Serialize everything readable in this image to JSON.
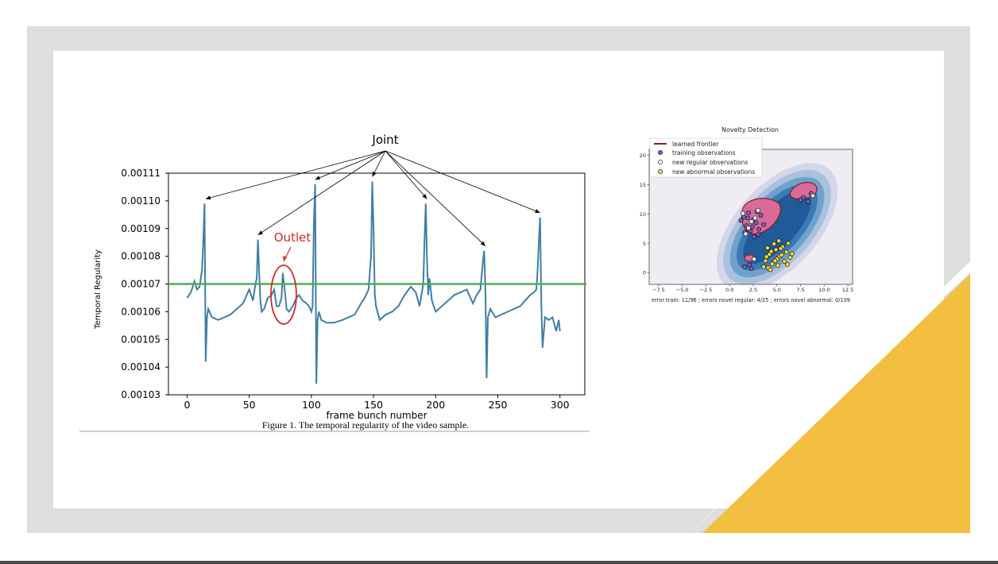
{
  "slide": {
    "colors": {
      "frame": "#dedede",
      "accent_triangle": "#f3bf40",
      "line": "#3f7ea6",
      "threshold": "#4caf50",
      "annotation_red": "#d42a26"
    }
  },
  "chart_data": [
    {
      "type": "line",
      "title": "",
      "xlabel": "frame bunch number",
      "ylabel": "Temporal Regularity",
      "caption": "Figure 1. The temporal regularity of the video sample.",
      "xlim": [
        -15,
        320
      ],
      "ylim": [
        0.00103,
        0.00111
      ],
      "xticks": [
        0,
        50,
        100,
        150,
        200,
        250,
        300
      ],
      "xtick_labels": [
        "0",
        "50",
        "100",
        "150",
        "200",
        "250",
        "300"
      ],
      "yticks": [
        0.00103,
        0.00104,
        0.00105,
        0.00106,
        0.00107,
        0.00108,
        0.00109,
        0.0011,
        0.00111
      ],
      "ytick_labels": [
        "0.00103",
        "0.00104",
        "0.00105",
        "0.00106",
        "0.00107",
        "0.00108",
        "0.00109",
        "0.00110",
        "0.00111"
      ],
      "grid": true,
      "threshold": 0.00107,
      "annotations": [
        {
          "text": "Joint",
          "points_to_x": [
            15,
            57,
            103,
            149,
            193,
            240,
            284
          ]
        },
        {
          "text": "Outlet",
          "points_to_x": [
            77
          ]
        }
      ],
      "series": [
        {
          "x": [
            0,
            3,
            6,
            8,
            10,
            12,
            13,
            14,
            15,
            16,
            17,
            20,
            25,
            30,
            35,
            40,
            45,
            48,
            50,
            53,
            55,
            56,
            57,
            58,
            59,
            60,
            62,
            65,
            68,
            70,
            72,
            74,
            76,
            77,
            78,
            79,
            80,
            82,
            85,
            88,
            90,
            93,
            96,
            98,
            100,
            101,
            102,
            103,
            104,
            105,
            106,
            108,
            112,
            118,
            125,
            130,
            135,
            140,
            143,
            146,
            148,
            149,
            150,
            151,
            152,
            155,
            160,
            165,
            170,
            175,
            180,
            184,
            187,
            190,
            191,
            192,
            193,
            194,
            195,
            197,
            200,
            205,
            210,
            215,
            220,
            225,
            230,
            233,
            236,
            238,
            239,
            240,
            241,
            242,
            244,
            248,
            253,
            258,
            263,
            268,
            272,
            276,
            279,
            281,
            282,
            283,
            284,
            285,
            286,
            288,
            291,
            294,
            297,
            299,
            300
          ],
          "y": [
            0.001065,
            0.001067,
            0.001071,
            0.001068,
            0.001069,
            0.001075,
            0.001085,
            0.001099,
            0.001042,
            0.001058,
            0.001061,
            0.001058,
            0.001057,
            0.001058,
            0.001059,
            0.001061,
            0.001063,
            0.001066,
            0.001068,
            0.001064,
            0.00107,
            0.001072,
            0.001086,
            0.001074,
            0.001064,
            0.00106,
            0.001061,
            0.001065,
            0.001066,
            0.001068,
            0.001062,
            0.001062,
            0.001065,
            0.001074,
            0.00107,
            0.001066,
            0.001061,
            0.00106,
            0.001062,
            0.001065,
            0.001066,
            0.001064,
            0.001063,
            0.001062,
            0.00106,
            0.001062,
            0.001092,
            0.001106,
            0.001034,
            0.001057,
            0.00106,
            0.001057,
            0.001056,
            0.001056,
            0.001057,
            0.001058,
            0.001059,
            0.001063,
            0.001065,
            0.001068,
            0.00108,
            0.001107,
            0.00109,
            0.001066,
            0.001062,
            0.001057,
            0.001059,
            0.00106,
            0.001062,
            0.001066,
            0.001069,
            0.001067,
            0.001062,
            0.00107,
            0.001085,
            0.001099,
            0.00108,
            0.001066,
            0.001072,
            0.001064,
            0.00106,
            0.001062,
            0.001064,
            0.001066,
            0.001067,
            0.001068,
            0.001063,
            0.001066,
            0.001068,
            0.001078,
            0.001082,
            0.001068,
            0.001036,
            0.001058,
            0.001061,
            0.001058,
            0.001059,
            0.00106,
            0.001061,
            0.001062,
            0.001064,
            0.001066,
            0.001067,
            0.001068,
            0.001075,
            0.001085,
            0.001094,
            0.001062,
            0.001047,
            0.001058,
            0.001057,
            0.001058,
            0.001053,
            0.001057,
            0.001053
          ]
        }
      ]
    },
    {
      "type": "scatter",
      "title": "Novelty Detection",
      "xlabel": "error train: 11/96 ; errors novel regular: 4/25 ; errors novel abnormal: 0/109",
      "ylabel": "",
      "xlim": [
        -8.5,
        13
      ],
      "ylim": [
        -2,
        21
      ],
      "xticks": [
        -7.5,
        -5.0,
        -2.5,
        0.0,
        2.5,
        5.0,
        7.5,
        10.0,
        12.5
      ],
      "xtick_labels": [
        "−7.5",
        "−5.0",
        "−2.5",
        "0.0",
        "2.5",
        "5.0",
        "7.5",
        "10.0",
        "12.5"
      ],
      "yticks": [
        0,
        5,
        10,
        15,
        20
      ],
      "ytick_labels": [
        "0",
        "5",
        "10",
        "15",
        "20"
      ],
      "legend": [
        "learned frontier",
        "training observations",
        "new regular observations",
        "new abnormal observations"
      ],
      "legend_position": "top-left",
      "series": [
        {
          "name": "training observations",
          "color": "#7b5fc0",
          "x": [
            1.5,
            1.8,
            2.0,
            2.2,
            2.5,
            2.8,
            3.0,
            3.3,
            1.2,
            1.6,
            2.4,
            2.9,
            3.6,
            1.9,
            2.6,
            3.1,
            7.8,
            8.3,
            8.6,
            7.5,
            1.6,
            2.1,
            2.3
          ],
          "y": [
            9.5,
            8.0,
            10.2,
            7.1,
            9.0,
            8.5,
            6.5,
            9.8,
            8.9,
            6.9,
            7.8,
            10.4,
            8.2,
            9.3,
            6.1,
            7.4,
            12.8,
            12.1,
            13.5,
            12.4,
            1.0,
            1.3,
            0.7
          ]
        },
        {
          "name": "new regular observations",
          "color": "#ffffff",
          "x": [
            1.4,
            2.0,
            2.7,
            1.7,
            2.3,
            3.0,
            8.8,
            2.6
          ],
          "y": [
            10.1,
            7.6,
            9.3,
            6.6,
            8.7,
            10.6,
            13.1,
            2.3
          ]
        },
        {
          "name": "new abnormal observations",
          "color": "#f2d637",
          "x": [
            3.8,
            4.2,
            4.5,
            4.9,
            5.3,
            5.6,
            6.0,
            6.4,
            4.0,
            4.7,
            5.1,
            5.8,
            6.2,
            3.6,
            4.4,
            5.0,
            5.5,
            6.6,
            4.1,
            4.8,
            5.4,
            3.9,
            6.1,
            5.2,
            4.3
          ],
          "y": [
            2.0,
            3.1,
            1.5,
            3.9,
            2.8,
            4.4,
            3.5,
            2.6,
            4.2,
            4.9,
            1.2,
            1.9,
            5.0,
            1.0,
            3.6,
            2.3,
            3.0,
            3.2,
            0.8,
            2.0,
            4.1,
            2.7,
            1.4,
            5.4,
            0.5
          ]
        }
      ]
    }
  ]
}
